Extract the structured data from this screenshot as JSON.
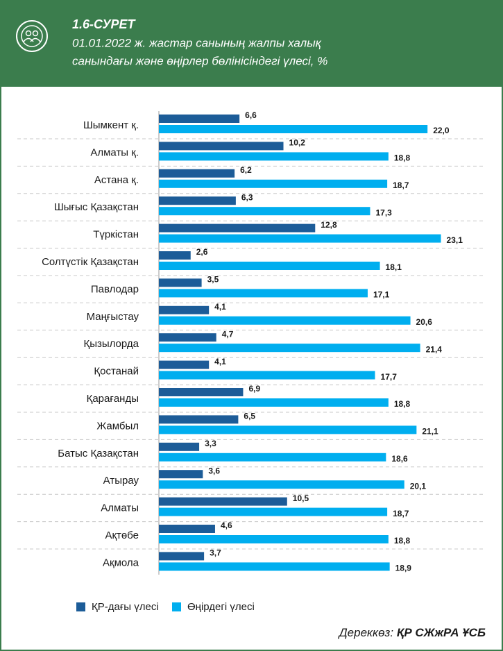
{
  "chart_data": {
    "type": "bar",
    "orientation": "horizontal",
    "title": "1.6-СУРЕТ",
    "subtitle": [
      "01.01.2022 ж. жастар санының жалпы халық",
      "санындағы және өңірлер бөлінісіндегі үлесі, %"
    ],
    "categories": [
      "Шымкент қ.",
      "Алматы қ.",
      "Астана қ.",
      "Шығыс Қазақстан",
      "Түркістан",
      "Солтүстік Қазақстан",
      "Павлодар",
      "Маңғыстау",
      "Қызылорда",
      "Қостанай",
      "Қарағанды",
      "Жамбыл",
      "Батыс Қазақстан",
      "Атырау",
      "Алматы",
      "Ақтөбе",
      "Ақмола"
    ],
    "series": [
      {
        "name": "ҚР-дағы үлесі",
        "color": "#1c5c98",
        "values": [
          6.6,
          10.2,
          6.2,
          6.3,
          12.8,
          2.6,
          3.5,
          4.1,
          4.7,
          4.1,
          6.9,
          6.5,
          3.3,
          3.6,
          10.5,
          4.6,
          3.7
        ],
        "value_labels": [
          "6,6",
          "10,2",
          "6,2",
          "6,3",
          "12,8",
          "2,6",
          "3,5",
          "4,1",
          "4,7",
          "4,1",
          "6,9",
          "6,5",
          "3,3",
          "3,6",
          "10,5",
          "4,6",
          "3,7"
        ]
      },
      {
        "name": "Өңірдегі үлесі",
        "color": "#00aeef",
        "values": [
          22.0,
          18.8,
          18.7,
          17.3,
          23.1,
          18.1,
          17.1,
          20.6,
          21.4,
          17.7,
          18.8,
          21.1,
          18.6,
          20.1,
          18.7,
          18.8,
          18.9
        ],
        "value_labels": [
          "22,0",
          "18,8",
          "18,7",
          "17,3",
          "23,1",
          "18,1",
          "17,1",
          "20,6",
          "21,4",
          "17,7",
          "18,8",
          "21,1",
          "18,6",
          "20,1",
          "18,7",
          "18,8",
          "18,9"
        ]
      }
    ],
    "source_prefix": "Дереккөз:",
    "source_name": "ҚР СЖжРА ҰСБ"
  }
}
